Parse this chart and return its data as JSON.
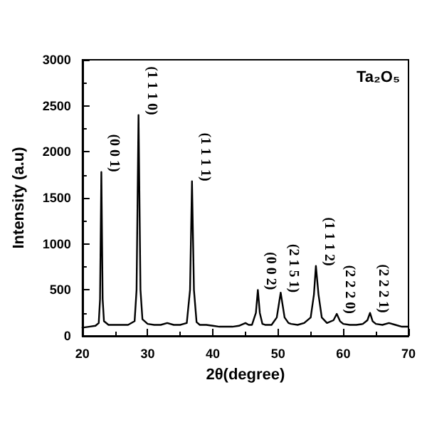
{
  "chart_data": {
    "type": "line",
    "xlabel": "2θ(degree)",
    "ylabel": "Intensity (a.u)",
    "grid": false,
    "marker": "none",
    "line_style": "solid",
    "xlim": [
      20,
      70
    ],
    "ylim": [
      0,
      3000
    ],
    "xticks": [
      20,
      30,
      40,
      50,
      60,
      70
    ],
    "yticks": [
      0,
      500,
      1000,
      1500,
      2000,
      2500,
      3000
    ],
    "series": [
      {
        "color": "#000000",
        "x": [
          20,
          21,
          22,
          22.5,
          22.7,
          22.9,
          23.1,
          23.3,
          24,
          25,
          26,
          27,
          28,
          28.3,
          28.6,
          28.9,
          29.2,
          30,
          31,
          32,
          33,
          34,
          35,
          36,
          36.5,
          36.8,
          37.1,
          37.5,
          38,
          39,
          40,
          41,
          42,
          43,
          44,
          45,
          45.5,
          46,
          46.6,
          46.9,
          47.2,
          47.6,
          48,
          49,
          49.8,
          50.4,
          51,
          51.6,
          52,
          53,
          54,
          55,
          55.5,
          55.8,
          56.2,
          56.7,
          57.5,
          58.5,
          59,
          59.5,
          60,
          61,
          62,
          63,
          63.7,
          64.1,
          64.5,
          65,
          66,
          67,
          68,
          69,
          70
        ],
        "values": [
          90,
          100,
          110,
          140,
          400,
          1780,
          400,
          160,
          120,
          120,
          120,
          120,
          160,
          500,
          2400,
          500,
          180,
          130,
          120,
          120,
          140,
          120,
          120,
          140,
          500,
          1680,
          500,
          150,
          120,
          120,
          110,
          100,
          100,
          100,
          110,
          140,
          120,
          120,
          250,
          500,
          250,
          130,
          120,
          120,
          200,
          470,
          200,
          140,
          130,
          120,
          140,
          200,
          450,
          760,
          450,
          200,
          140,
          170,
          240,
          160,
          130,
          120,
          120,
          130,
          170,
          250,
          160,
          130,
          120,
          140,
          120,
          100,
          100
        ]
      }
    ],
    "annotations": [
      "Ta₂O₅",
      {
        "text": "(0 0 1)",
        "x": 22.9,
        "y": 1780
      },
      {
        "text": "(1 1 1 0)",
        "x": 28.6,
        "y": 2400
      },
      {
        "text": "(1 1 1 1)",
        "x": 36.8,
        "y": 1680
      },
      {
        "text": "(0 0 2)",
        "x": 46.9,
        "y": 500
      },
      {
        "text": "(2 1 5 1)",
        "x": 50.4,
        "y": 470
      },
      {
        "text": "(1 1 1 2)",
        "x": 55.8,
        "y": 760
      },
      {
        "text": "(2 2 2 0)",
        "x": 59.0,
        "y": 240
      },
      {
        "text": "(2 2 2 1)",
        "x": 64.1,
        "y": 250
      }
    ]
  }
}
